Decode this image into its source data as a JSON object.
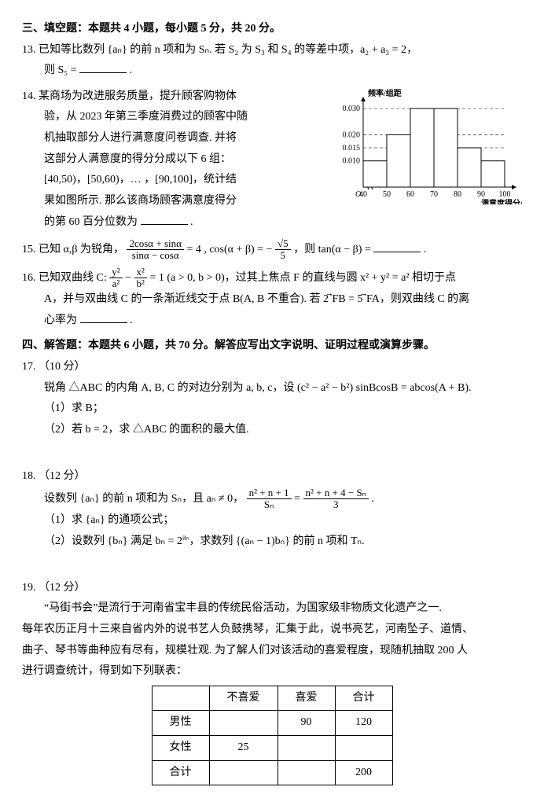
{
  "section3": {
    "heading": "三、填空题：本题共 4 小题，每小题 5 分，共 20 分。"
  },
  "q13": {
    "num": "13.",
    "line1": "已知等比数列 {aₙ} 的前 n 项和为 Sₙ. 若 S₂ 为 S₃ 和 S₄ 的等差中项，a₂ + a₃ = 2，",
    "line2_pre": "则 S₅ =",
    "line2_post": "."
  },
  "q14": {
    "num": "14.",
    "l1": "某商场为改进服务质量，提升顾客购物体",
    "l2": "验，从 2023 年第三季度消费过的顾客中随",
    "l3": "机抽取部分人进行满意度问卷调查. 并将",
    "l4": "这部分人满意度的得分分成以下 6 组：",
    "l5": "[40,50)，[50,60)，… ，[90,100]，统计结",
    "l6": "果如图所示. 那么该商场顾客满意度得分",
    "l7_pre": "的第 60 百分位数为",
    "l7_post": ".",
    "chart": {
      "ylabel": "频率/组距",
      "xlabel": "满意度得分/分",
      "yticks": [
        0.01,
        0.015,
        0.02,
        0.03
      ],
      "xticks": [
        40,
        50,
        60,
        70,
        80,
        90,
        100
      ],
      "bars": [
        {
          "x": 40,
          "h": 0.01
        },
        {
          "x": 50,
          "h": 0.02
        },
        {
          "x": 60,
          "h": 0.03
        },
        {
          "x": 70,
          "h": 0.03
        },
        {
          "x": 80,
          "h": 0.015
        },
        {
          "x": 90,
          "h": 0.01
        }
      ],
      "bar_color": "#ffffff",
      "stroke": "#000000",
      "grid_dash": "4 3",
      "font_size": 10
    }
  },
  "q15": {
    "num": "15.",
    "pre": "已知 α,β 为锐角，",
    "frac1_num": "2cosα + sinα",
    "frac1_den": "sinα − cosα",
    "eq1": "= 4 , cos(α + β) = −",
    "frac2_num": "√5",
    "frac2_den": "5",
    "mid": "，则 tan(α − β) =",
    "post": "."
  },
  "q16": {
    "num": "16.",
    "l1_pre": "已知双曲线 C:",
    "frac_a_num": "y²",
    "frac_a_den": "a²",
    "minus": "−",
    "frac_b_num": "x²",
    "frac_b_den": "b²",
    "l1_post": "= 1 (a > 0, b > 0)，过其上焦点 F 的直线与圆 x² + y² = a² 相切于点",
    "l2": "A，并与双曲线 C 的一条渐近线交于点 B(A, B 不重合). 若 2 ⃗FB = 5 ⃗FA，则双曲线 C 的离",
    "l3_pre": "心率为",
    "l3_post": "."
  },
  "section4": {
    "heading": "四、解答题：本题共 6 小题，共 70 分。解答应写出文字说明、证明过程或演算步骤。"
  },
  "q17": {
    "num": "17.",
    "pts": "（10 分）",
    "l1": "锐角 △ABC 的内角 A, B, C 的对边分别为 a, b, c，设 (c² − a² − b²) sinBcosB = abcos(A + B).",
    "p1": "（1）求 B；",
    "p2": "（2）若 b = 2，求 △ABC 的面积的最大值."
  },
  "q18": {
    "num": "18.",
    "pts": "（12 分）",
    "l1_pre": "设数列 {aₙ} 的前 n 项和为 Sₙ，且 aₙ ≠ 0，",
    "fracL_num": "n² + n + 1",
    "fracL_den": "Sₙ",
    "eq": "=",
    "fracR_num": "n² + n + 4 − Sₙ",
    "fracR_den": "3",
    "l1_post": ".",
    "p1": "（1）求 {aₙ} 的通项公式；",
    "p2_pre": "（2）设数列 {bₙ} 满足 bₙ = 2",
    "p2_exp": "aₙ",
    "p2_post": "，求数列 {(aₙ − 1)bₙ} 的前 n 项和 Tₙ."
  },
  "q19": {
    "num": "19.",
    "pts": "（12 分）",
    "l1": "　　“马街书会”是流行于河南省宝丰县的传统民俗活动，为国家级非物质文化遗产之一.",
    "l2": "每年农历正月十三来自省内外的说书艺人负鼓携琴，汇集于此，说书亮艺，河南坠子、道情、",
    "l3": "曲子、琴书等曲种应有尽有，规模壮观. 为了解人们对该活动的喜爱程度，现随机抽取 200 人",
    "l4": "进行调查统计，得到如下列联表：",
    "table": {
      "cols": [
        "",
        "不喜爱",
        "喜爱",
        "合计"
      ],
      "rows": [
        [
          "男性",
          "",
          "90",
          "120"
        ],
        [
          "女性",
          "25",
          "",
          ""
        ],
        [
          "合计",
          "",
          "",
          "200"
        ]
      ]
    }
  }
}
